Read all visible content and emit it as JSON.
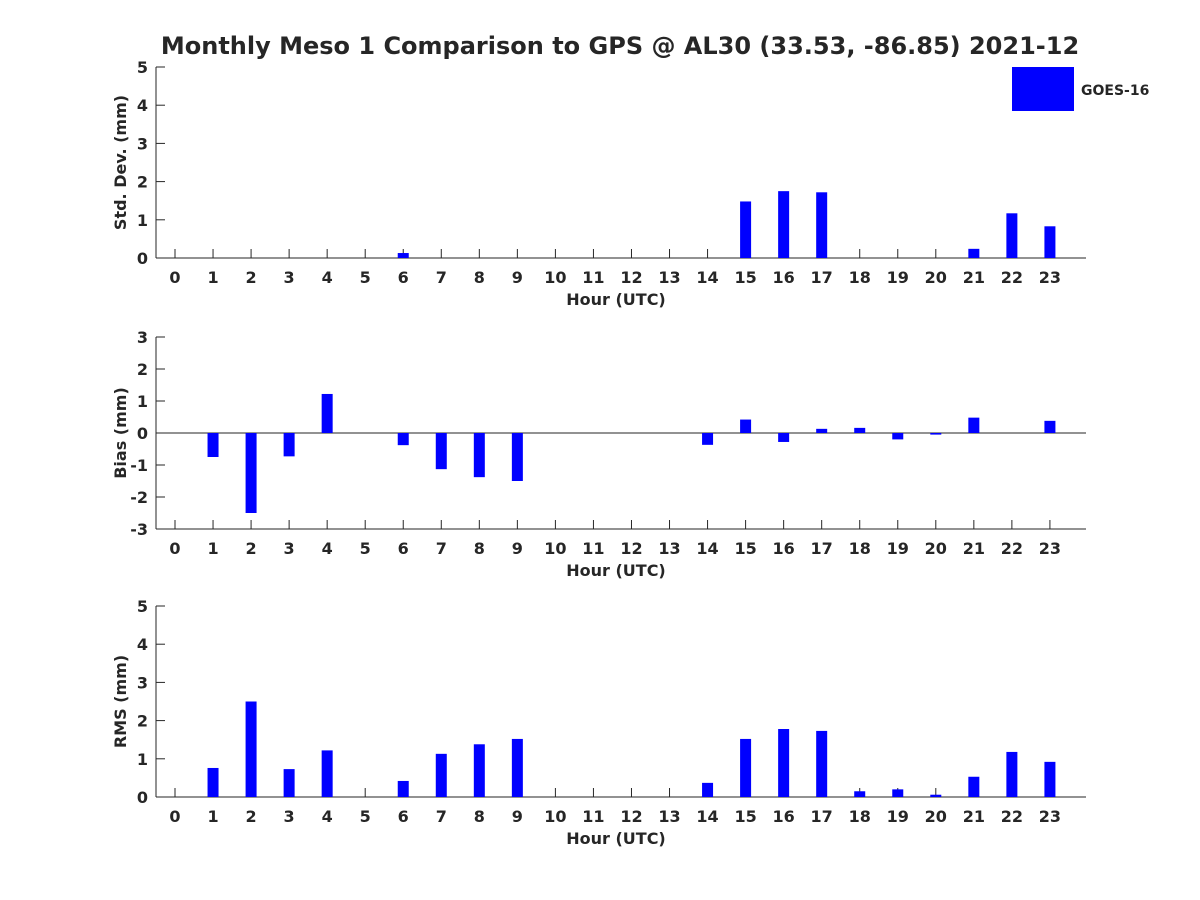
{
  "title": "Monthly Meso 1 Comparison to GPS @ AL30 (33.53, -86.85) 2021-12",
  "legend": {
    "label": "GOES-16",
    "color": "#0000ff",
    "placement": "top-right"
  },
  "chart_data": [
    {
      "type": "bar",
      "ylabel": "Std. Dev. (mm)",
      "xlabel": "Hour (UTC)",
      "ylim": [
        0,
        5
      ],
      "yticks": [
        0,
        1,
        2,
        3,
        4,
        5
      ],
      "x": [
        0,
        1,
        2,
        3,
        4,
        5,
        6,
        7,
        8,
        9,
        10,
        11,
        12,
        13,
        14,
        15,
        16,
        17,
        18,
        19,
        20,
        21,
        22,
        23
      ],
      "values": [
        0,
        0,
        0,
        0,
        0,
        0,
        0.13,
        0,
        0,
        0,
        0,
        0,
        0,
        0,
        0,
        1.48,
        1.75,
        1.72,
        0,
        0,
        0,
        0.24,
        1.17,
        0.83
      ],
      "color": "#0000ff"
    },
    {
      "type": "bar",
      "ylabel": "Bias (mm)",
      "xlabel": "Hour (UTC)",
      "ylim": [
        -3,
        3
      ],
      "yticks": [
        -3,
        -2,
        -1,
        0,
        1,
        2,
        3
      ],
      "x": [
        0,
        1,
        2,
        3,
        4,
        5,
        6,
        7,
        8,
        9,
        10,
        11,
        12,
        13,
        14,
        15,
        16,
        17,
        18,
        19,
        20,
        21,
        22,
        23
      ],
      "values": [
        0,
        -0.75,
        -2.5,
        -0.73,
        1.22,
        0,
        -0.38,
        -1.13,
        -1.38,
        -1.5,
        0,
        0,
        0,
        0,
        -0.37,
        0.42,
        -0.28,
        0.13,
        0.16,
        -0.2,
        -0.05,
        0.48,
        0,
        0.38
      ],
      "zero_line": true,
      "color": "#0000ff"
    },
    {
      "type": "bar",
      "ylabel": "RMS (mm)",
      "xlabel": "Hour (UTC)",
      "ylim": [
        0,
        5
      ],
      "yticks": [
        0,
        1,
        2,
        3,
        4,
        5
      ],
      "x": [
        0,
        1,
        2,
        3,
        4,
        5,
        6,
        7,
        8,
        9,
        10,
        11,
        12,
        13,
        14,
        15,
        16,
        17,
        18,
        19,
        20,
        21,
        22,
        23
      ],
      "values": [
        0,
        0.76,
        2.5,
        0.73,
        1.22,
        0,
        0.42,
        1.13,
        1.38,
        1.52,
        0,
        0,
        0,
        0,
        0.37,
        1.52,
        1.78,
        1.73,
        0.15,
        0.2,
        0.06,
        0.53,
        1.18,
        0.92
      ],
      "color": "#0000ff"
    }
  ]
}
